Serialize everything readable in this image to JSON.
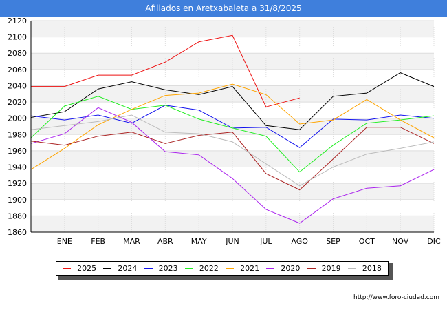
{
  "title": "Afiliados en Aretxabaleta a 31/8/2025",
  "source": "http://www.foro-ciudad.com",
  "chart_data": {
    "type": "line",
    "title": "Afiliados en Aretxabaleta a 31/8/2025",
    "categories": [
      "",
      "ENE",
      "FEB",
      "MAR",
      "ABR",
      "MAY",
      "JUN",
      "JUL",
      "AGO",
      "SEP",
      "OCT",
      "NOV",
      "DIC"
    ],
    "ylim": [
      1860,
      2120
    ],
    "yticks": [
      1860,
      1880,
      1900,
      1920,
      1940,
      1960,
      1980,
      2000,
      2020,
      2040,
      2060,
      2080,
      2100,
      2120
    ],
    "grid": true,
    "legend_position": "bottom",
    "series": [
      {
        "name": "2025",
        "color": "#ee1111",
        "values": [
          2039,
          2039,
          2053,
          2053,
          2069,
          2094,
          2102,
          2014,
          2025,
          null,
          null,
          null,
          null
        ]
      },
      {
        "name": "2024",
        "color": "#000000",
        "values": [
          2001,
          2008,
          2036,
          2045,
          2035,
          2029,
          2039,
          1991,
          1986,
          2027,
          2031,
          2056,
          2039
        ]
      },
      {
        "name": "2023",
        "color": "#1111ee",
        "values": [
          2003,
          1998,
          2004,
          1994,
          2016,
          2010,
          1988,
          1989,
          1964,
          1999,
          1998,
          2004,
          2000
        ]
      },
      {
        "name": "2022",
        "color": "#22ee22",
        "values": [
          1976,
          2015,
          2027,
          2011,
          2016,
          1999,
          1988,
          1978,
          1934,
          1967,
          1994,
          1998,
          2003
        ]
      },
      {
        "name": "2021",
        "color": "#ffa500",
        "values": [
          1937,
          1963,
          1992,
          2011,
          2028,
          2031,
          2042,
          2029,
          1993,
          1998,
          2023,
          1998,
          1976
        ]
      },
      {
        "name": "2020",
        "color": "#aa22ee",
        "values": [
          1969,
          1981,
          2013,
          1995,
          1959,
          1955,
          1926,
          1888,
          1871,
          1901,
          1914,
          1917,
          1937
        ]
      },
      {
        "name": "2019",
        "color": "#aa2222",
        "values": [
          1972,
          1967,
          1978,
          1983,
          1969,
          1979,
          1983,
          1932,
          1912,
          1950,
          1989,
          1989,
          1969
        ]
      },
      {
        "name": "2018",
        "color": "#bbbbbb",
        "values": [
          1986,
          1991,
          1996,
          2004,
          1983,
          1981,
          1971,
          1944,
          1917,
          1940,
          1956,
          1963,
          1971
        ]
      }
    ]
  }
}
